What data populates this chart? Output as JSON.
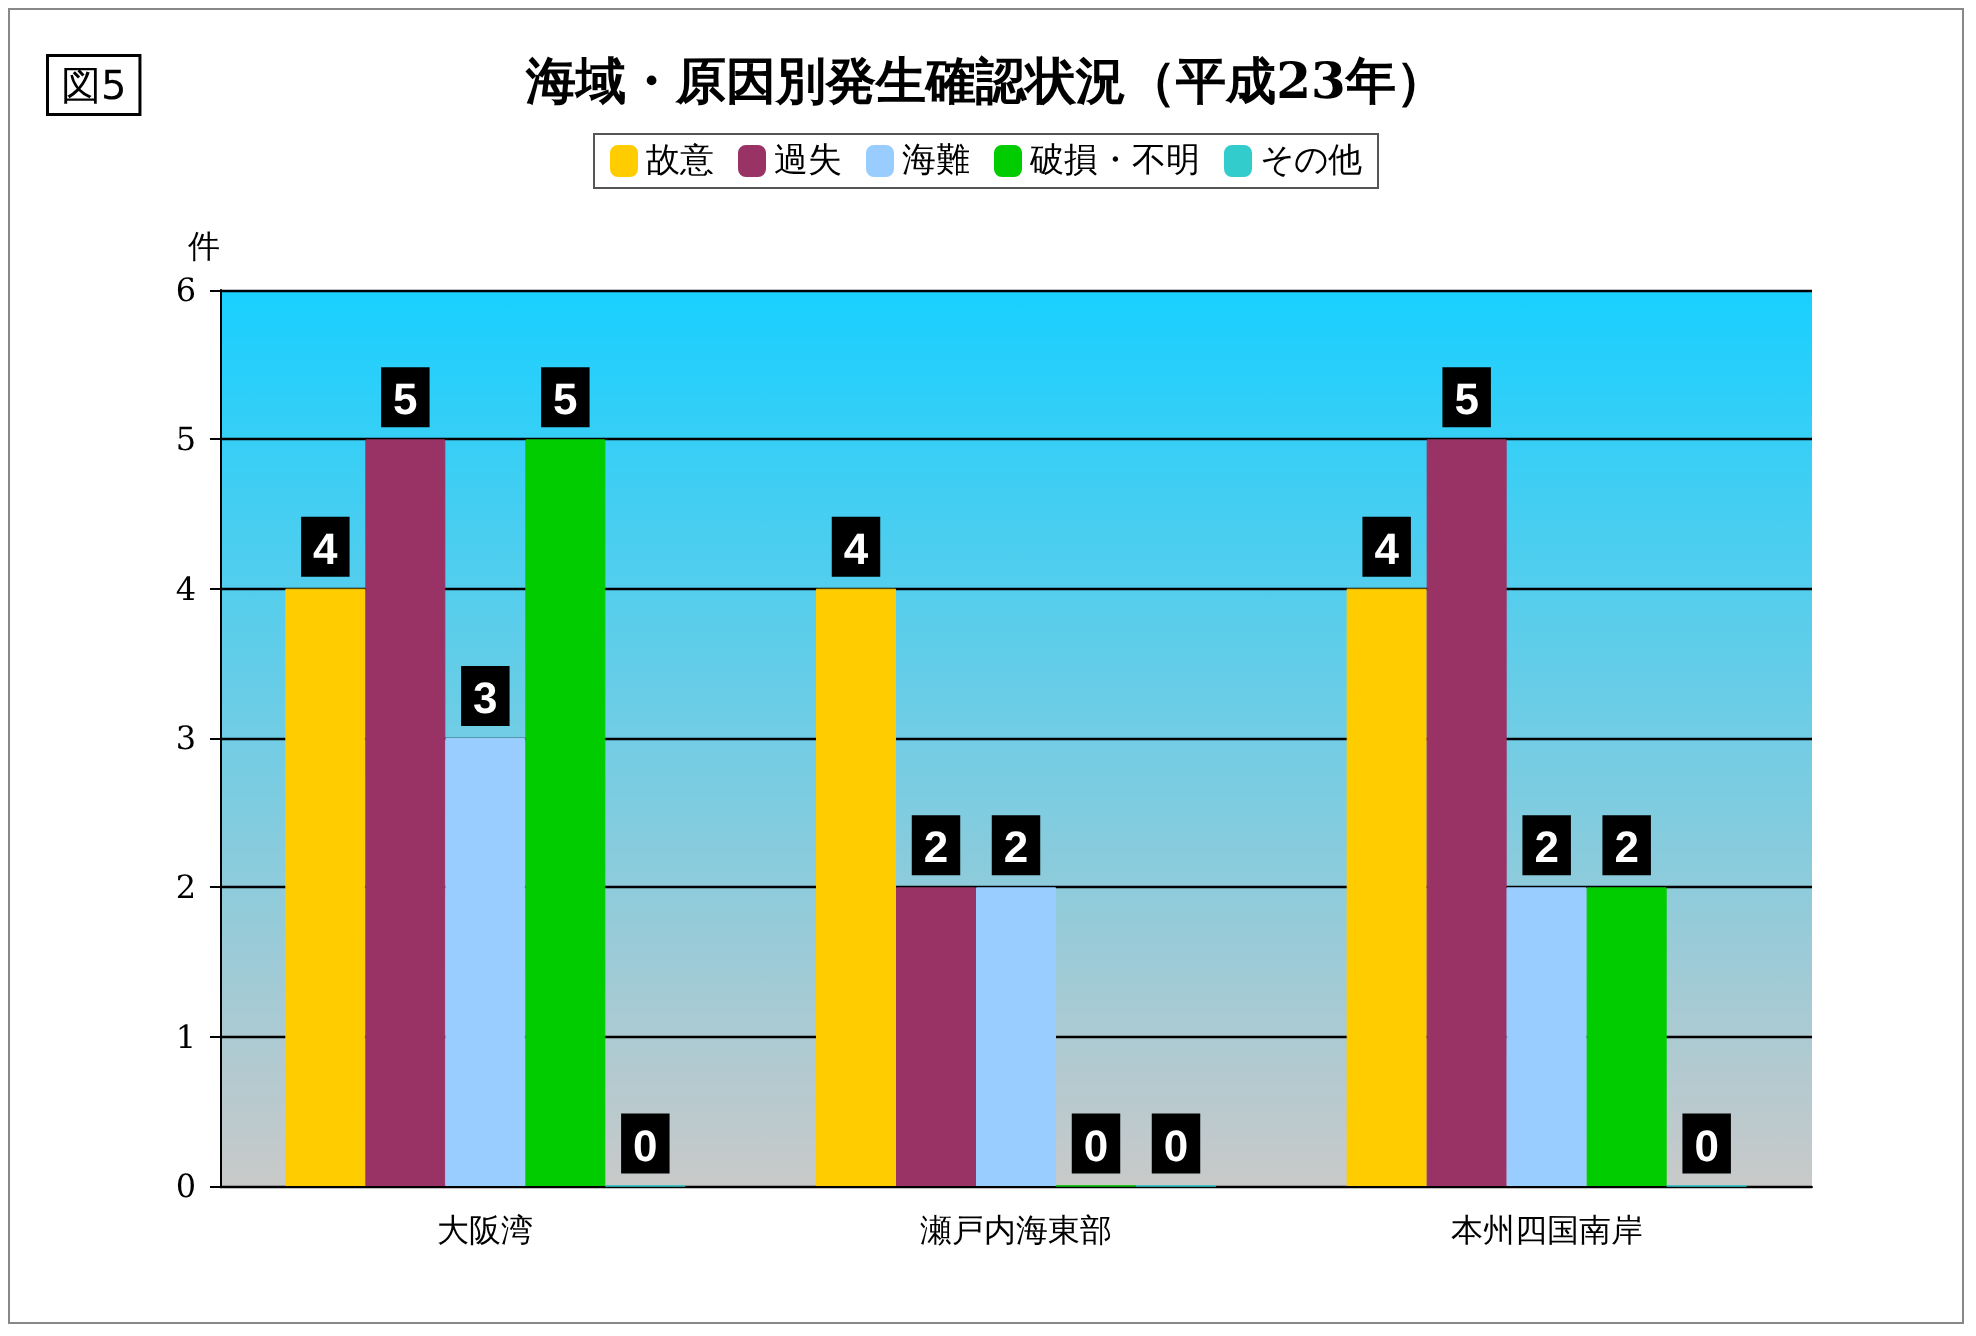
{
  "chart_data": {
    "type": "bar",
    "title": "海域・原因別発生確認状況（平成23年）",
    "annotations": [
      "図5"
    ],
    "ylabel": "件",
    "categories": [
      "大阪湾",
      "瀬戸内海東部",
      "本州四国南岸"
    ],
    "series": [
      {
        "name": "故意",
        "color": "#ffcc00",
        "values": [
          4,
          4,
          4
        ]
      },
      {
        "name": "過失",
        "color": "#993366",
        "values": [
          5,
          2,
          5
        ]
      },
      {
        "name": "海難",
        "color": "#99ccff",
        "values": [
          3,
          2,
          2
        ]
      },
      {
        "name": "破損・不明",
        "color": "#00cc00",
        "values": [
          5,
          0,
          2
        ]
      },
      {
        "name": "その他",
        "color": "#33cccc",
        "values": [
          0,
          0,
          0
        ]
      }
    ],
    "ylim": [
      0,
      6
    ],
    "yticks": [
      0,
      1,
      2,
      3,
      4,
      5,
      6
    ],
    "grid": "y",
    "legend": "top",
    "data_labels": true
  }
}
